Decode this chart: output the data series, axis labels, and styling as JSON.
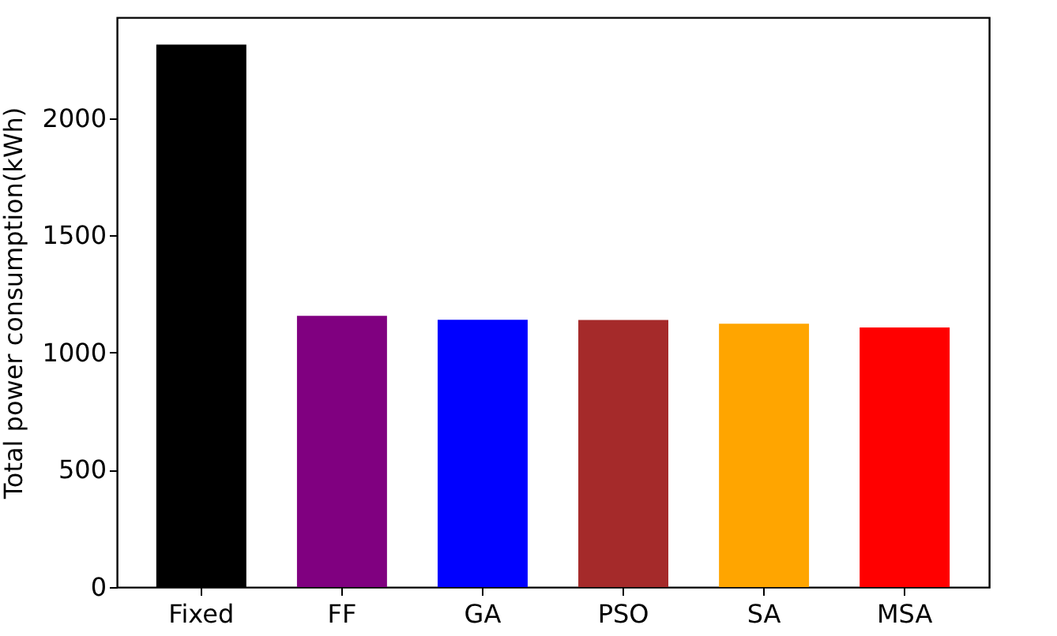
{
  "chart_data": {
    "type": "bar",
    "ylabel": "Total power consumption(kWh)",
    "categories": [
      "Fixed",
      "FF",
      "GA",
      "PSO",
      "SA",
      "MSA"
    ],
    "values": [
      2314,
      1157,
      1140,
      1139,
      1123,
      1107
    ],
    "colors": [
      "#000000",
      "#800080",
      "#0000ff",
      "#a52a2a",
      "#ffa500",
      "#ff0000"
    ],
    "ylim": [
      0,
      2430
    ],
    "yticks": [
      0,
      500,
      1000,
      1500,
      2000
    ],
    "grid": false,
    "legend": false
  }
}
